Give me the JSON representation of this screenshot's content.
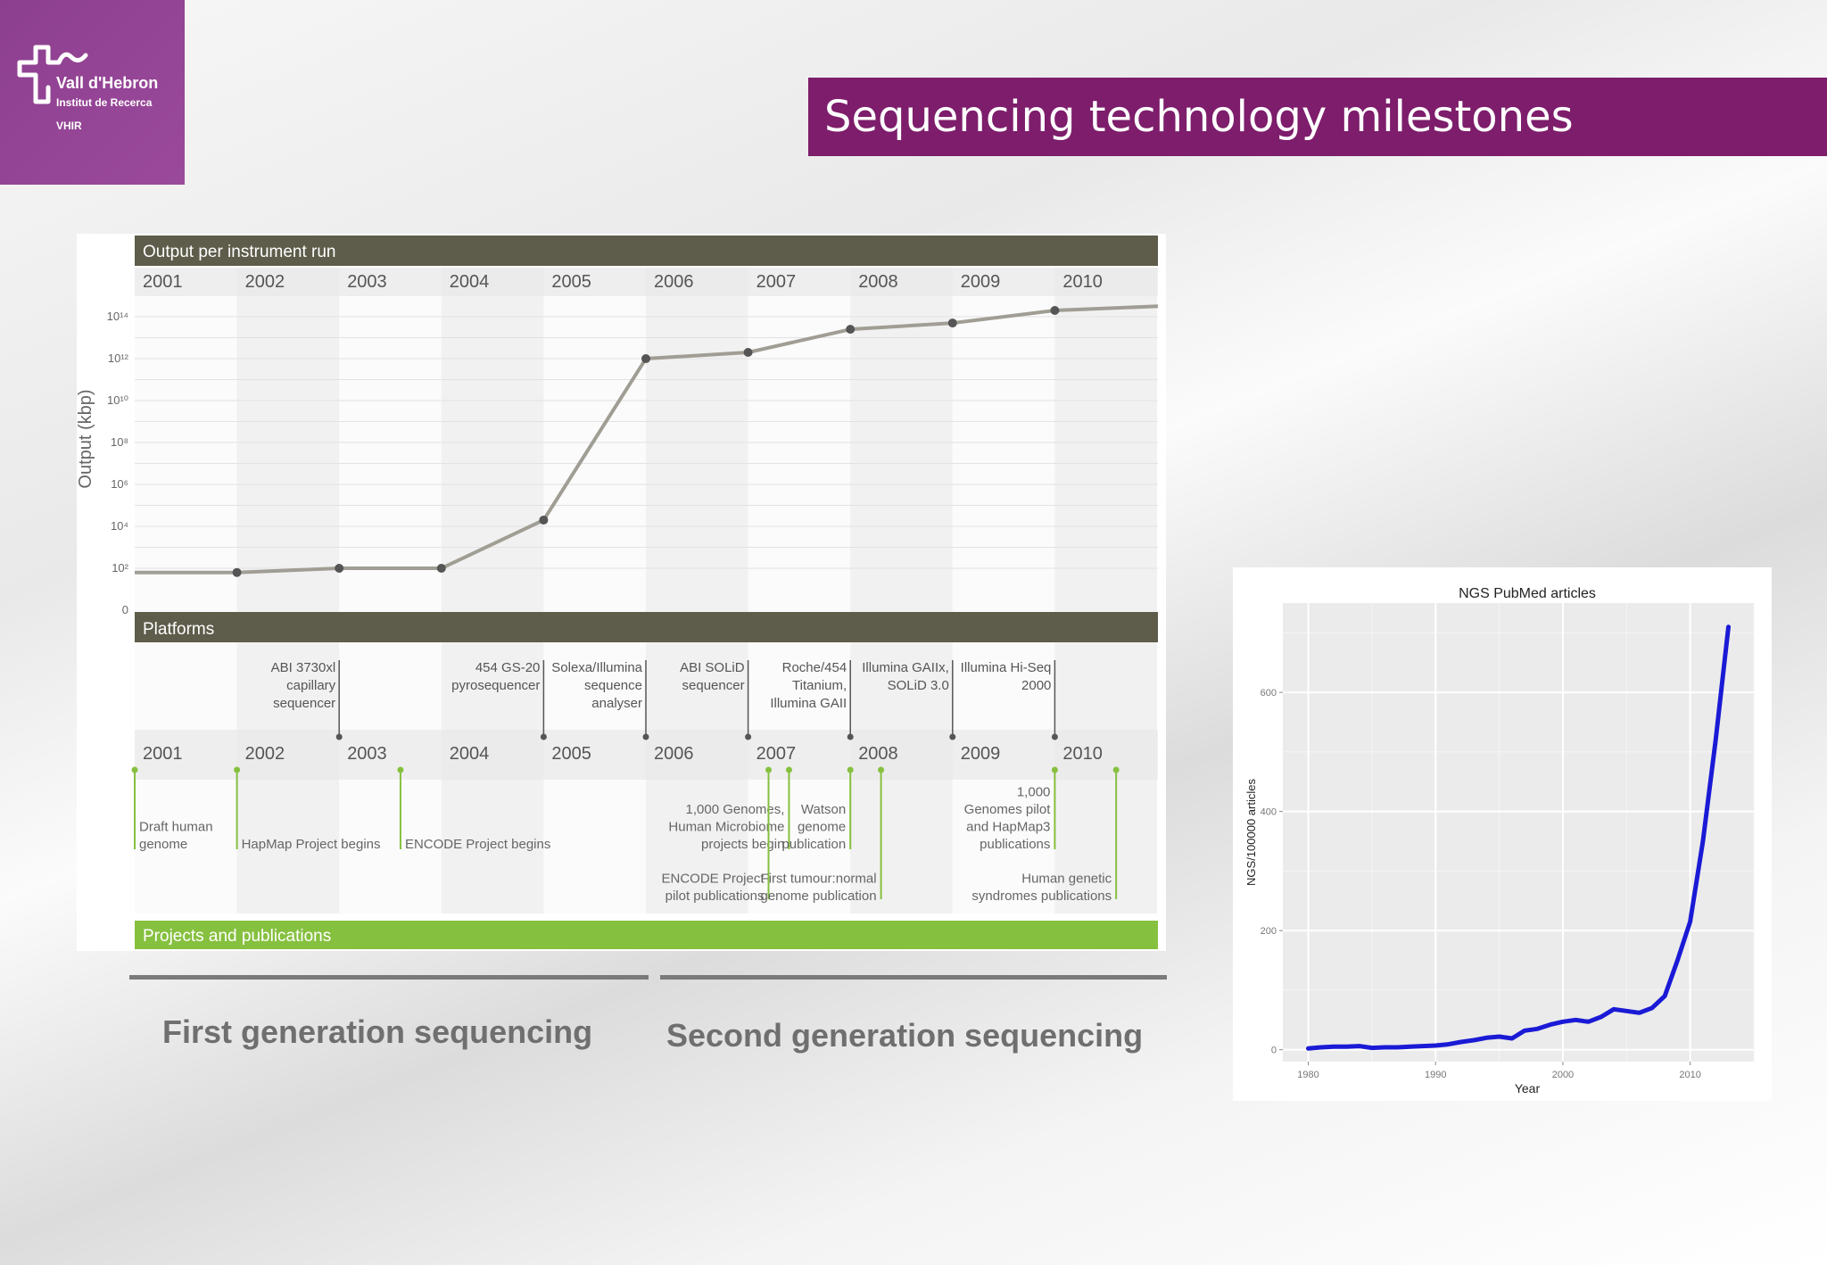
{
  "logo": {
    "name": "Vall d'Hebron",
    "subtitle": "Institut de Recerca",
    "abbr": "VHIR",
    "color": "#8d3f8f"
  },
  "slide": {
    "title": "Sequencing technology milestones",
    "title_bg": "#7d1d6b"
  },
  "generations": {
    "first": "First generation sequencing",
    "second": "Second generation sequencing"
  },
  "chart_data": [
    {
      "type": "line",
      "title": "Output per instrument run",
      "ylabel": "Output (kbp)",
      "y_scale": "log",
      "y_ticks": [
        "0",
        "10²",
        "10⁴",
        "10⁶",
        "10⁸",
        "10¹⁰",
        "10¹²",
        "10¹⁴"
      ],
      "years": [
        "2001",
        "2002",
        "2003",
        "2004",
        "2005",
        "2006",
        "2007",
        "2008",
        "2009",
        "2010"
      ],
      "x": [
        2001,
        2002,
        2003,
        2004,
        2005,
        2006,
        2007,
        2008,
        2009,
        2010,
        2011
      ],
      "y_log10": [
        1.8,
        1.8,
        2.0,
        2.0,
        4.3,
        12.0,
        12.3,
        13.4,
        13.7,
        14.3,
        14.5
      ],
      "point_years": [
        2002,
        2003,
        2004,
        2005,
        2006,
        2007,
        2008,
        2009,
        2010
      ],
      "line_color": "#a09e94",
      "header_color": "#5e5c4a",
      "platforms_title": "Platforms",
      "platforms": [
        {
          "lines": [
            "ABI 3730xl",
            "capillary",
            "sequencer"
          ],
          "year": 2003
        },
        {
          "lines": [
            "454 GS-20",
            "pyrosequencer"
          ],
          "year": 2005
        },
        {
          "lines": [
            "Solexa/Illumina",
            "sequence",
            "analyser"
          ],
          "year": 2006
        },
        {
          "lines": [
            "ABI SOLiD",
            "sequencer"
          ],
          "year": 2007
        },
        {
          "lines": [
            "Roche/454",
            "Titanium,",
            "Illumina GAII"
          ],
          "year": 2008
        },
        {
          "lines": [
            "Illumina GAIIx,",
            "SOLiD 3.0"
          ],
          "year": 2009
        },
        {
          "lines": [
            "Illumina Hi-Seq",
            "2000"
          ],
          "year": 2010
        }
      ],
      "projects_title": "Projects and publications",
      "projects_color": "#86c03f",
      "projects": [
        {
          "lines": [
            "Draft human",
            "genome"
          ],
          "year": 2001.0,
          "side": "right",
          "level": "low"
        },
        {
          "lines": [
            "HapMap Project begins"
          ],
          "year": 2002.0,
          "side": "right",
          "level": "low"
        },
        {
          "lines": [
            "ENCODE Project begins"
          ],
          "year": 2003.6,
          "side": "right",
          "level": "low"
        },
        {
          "lines": [
            "1,000 Genomes,",
            "Human Microbiome",
            "projects begin"
          ],
          "year": 2007.4,
          "side": "left",
          "level": "low"
        },
        {
          "lines": [
            "ENCODE Project",
            "pilot publications"
          ],
          "year": 2007.2,
          "side": "left",
          "level": "deep"
        },
        {
          "lines": [
            "First tumour:normal",
            "genome publication"
          ],
          "year": 2008.3,
          "side": "left",
          "level": "deep"
        },
        {
          "lines": [
            "Watson",
            "genome",
            "publication"
          ],
          "year": 2008.0,
          "side": "left",
          "level": "low"
        },
        {
          "lines": [
            "1,000",
            "Genomes pilot",
            "and HapMap3",
            "publications"
          ],
          "year": 2010.0,
          "side": "left",
          "level": "low"
        },
        {
          "lines": [
            "Human genetic",
            "syndromes publications"
          ],
          "year": 2010.6,
          "side": "left",
          "level": "deep"
        }
      ]
    },
    {
      "type": "line",
      "title": "NGS PubMed articles",
      "xlabel": "Year",
      "ylabel": "NGS/100000 articles",
      "xlim": [
        1978,
        2015
      ],
      "ylim": [
        -20,
        750
      ],
      "x_ticks": [
        1980,
        1990,
        2000,
        2010
      ],
      "y_ticks": [
        0,
        200,
        400,
        600
      ],
      "line_color": "#1a1ad6",
      "panel_color": "#ebebeb",
      "x": [
        1980,
        1981,
        1982,
        1983,
        1984,
        1985,
        1986,
        1987,
        1988,
        1989,
        1990,
        1991,
        1992,
        1993,
        1994,
        1995,
        1996,
        1997,
        1998,
        1999,
        2000,
        2001,
        2002,
        2003,
        2004,
        2005,
        2006,
        2007,
        2008,
        2009,
        2010,
        2011,
        2012,
        2013
      ],
      "y": [
        2,
        4,
        5,
        5,
        6,
        3,
        4,
        4,
        5,
        6,
        7,
        9,
        13,
        16,
        20,
        22,
        19,
        32,
        35,
        42,
        47,
        50,
        47,
        55,
        68,
        65,
        62,
        70,
        90,
        150,
        215,
        350,
        520,
        710
      ]
    }
  ]
}
